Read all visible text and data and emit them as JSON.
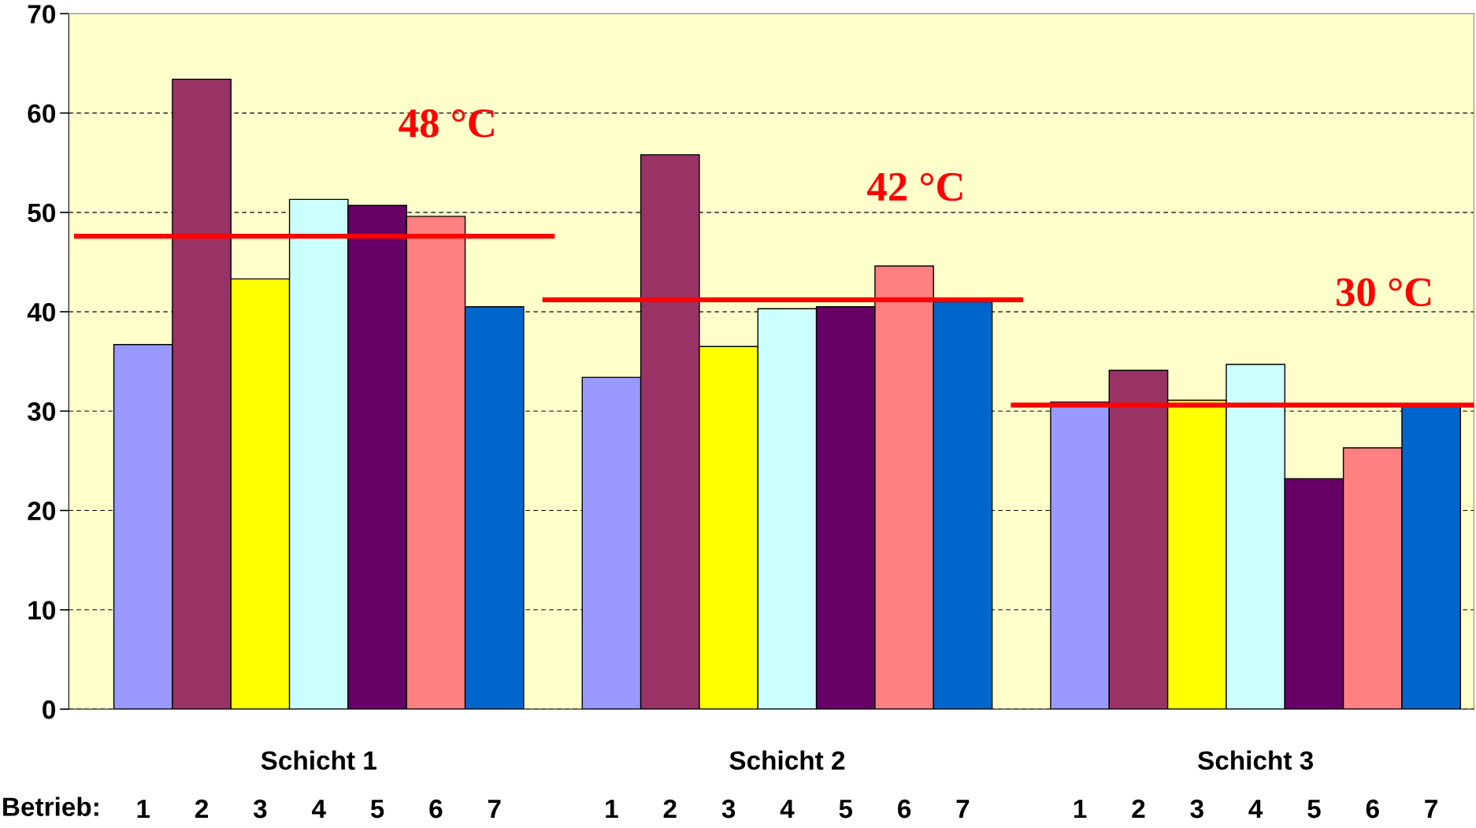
{
  "chart_data": {
    "type": "bar",
    "categories": [
      "1",
      "2",
      "3",
      "4",
      "5",
      "6",
      "7",
      null,
      "1",
      "2",
      "3",
      "4",
      "5",
      "6",
      "7",
      null,
      "1",
      "2",
      "3",
      "4",
      "5",
      "6",
      "7"
    ],
    "values": [
      36.7,
      63.4,
      43.3,
      51.3,
      50.7,
      49.6,
      40.5,
      null,
      33.4,
      55.8,
      36.5,
      40.3,
      40.5,
      44.6,
      41.0,
      null,
      30.9,
      34.1,
      31.1,
      34.7,
      23.2,
      26.3,
      30.5
    ],
    "colors": [
      "#9999ff",
      "#993366",
      "#ffff00",
      "#ccffff",
      "#660066",
      "#ff8080",
      "#0066cc",
      null,
      "#9999ff",
      "#993366",
      "#ffff00",
      "#ccffff",
      "#660066",
      "#ff8080",
      "#0066cc",
      null,
      "#9999ff",
      "#993366",
      "#ffff00",
      "#ccffff",
      "#660066",
      "#ff8080",
      "#0066cc"
    ],
    "xlabel": "Betrieb:",
    "annotations": [
      "Schicht 1",
      "Schicht 2",
      "Schicht 3"
    ],
    "ref_lines": [
      {
        "axis": "y",
        "value": 47.6,
        "label": "48 °C",
        "color": "#ff0000"
      },
      {
        "axis": "y",
        "value": 41.2,
        "label": "42 °C",
        "color": "#ff0000"
      },
      {
        "axis": "y",
        "value": 30.6,
        "label": "30 °C",
        "color": "#ff0000"
      }
    ],
    "ylim": [
      0,
      70
    ],
    "yticks": [
      0,
      10,
      20,
      30,
      40,
      50,
      60,
      70
    ],
    "grid": "y"
  }
}
